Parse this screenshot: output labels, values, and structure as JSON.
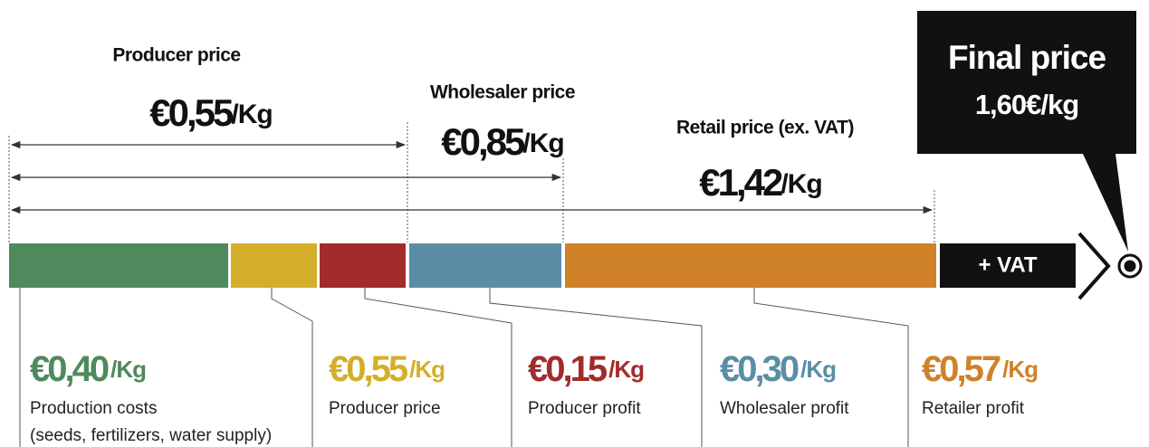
{
  "top_labels": [
    {
      "title": "Producer price",
      "price": "€0,55",
      "unit": "/Kg"
    },
    {
      "title": "Wholesaler price",
      "price": "€0,85",
      "unit": "/Kg"
    },
    {
      "title": "Retail price (ex. VAT)",
      "price": "€1,42",
      "unit": "/Kg"
    }
  ],
  "final": {
    "title": "Final price",
    "price": "1,60€/kg"
  },
  "vat": "+ VAT",
  "segments": [
    {
      "price": "€0,40",
      "unit": "/Kg",
      "label": [
        "Production costs",
        "(seeds, fertilizers, water supply)"
      ],
      "color": "#4e8a5c"
    },
    {
      "price": "€0,55",
      "unit": "/Kg",
      "label": [
        "Producer price"
      ],
      "color": "#d4ae2a"
    },
    {
      "price": "€0,15",
      "unit": "/Kg",
      "label": [
        "Producer profit"
      ],
      "color": "#a22b2b"
    },
    {
      "price": "€0,30",
      "unit": "/Kg",
      "label": [
        "Wholesaler profit"
      ],
      "color": "#5a8ea6"
    },
    {
      "price": "€0,57",
      "unit": "/Kg",
      "label": [
        "Retailer profit"
      ],
      "color": "#cf8227"
    }
  ]
}
